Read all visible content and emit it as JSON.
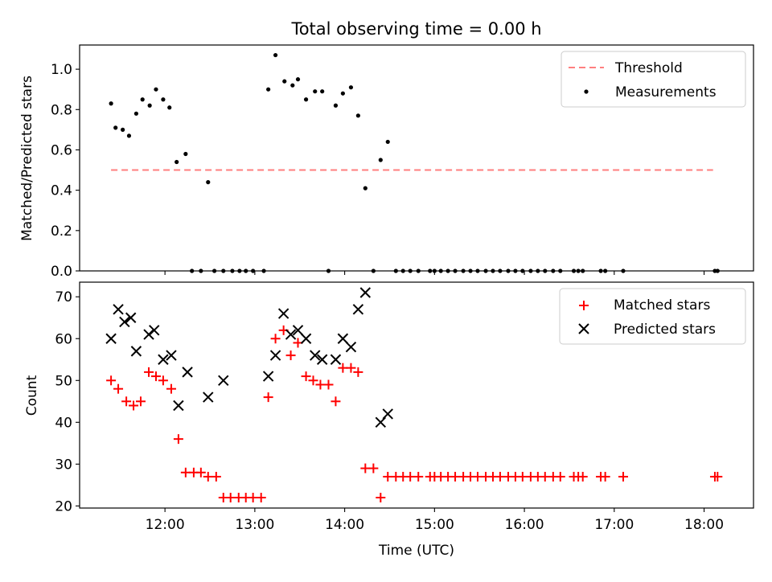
{
  "title": "Total observing time = 0.00 h",
  "xlabel": "Time (UTC)",
  "x_ticks": [
    "12:00",
    "13:00",
    "14:00",
    "15:00",
    "16:00",
    "17:00",
    "18:00"
  ],
  "top": {
    "ylabel": "Matched/Predicted stars",
    "y_ticks": [
      "0.0",
      "0.2",
      "0.4",
      "0.6",
      "0.8",
      "1.0"
    ],
    "legend": {
      "threshold": "Threshold",
      "measurements": "Measurements"
    }
  },
  "bottom": {
    "ylabel": "Count",
    "y_ticks": [
      "20",
      "30",
      "40",
      "50",
      "60",
      "70"
    ],
    "legend": {
      "matched": "Matched stars",
      "predicted": "Predicted stars"
    }
  },
  "colors": {
    "threshold": "#ff7f7f",
    "measurements": "#000000",
    "matched": "#ff0000",
    "predicted": "#000000"
  },
  "chart_data": [
    {
      "type": "scatter",
      "panel": "top",
      "xlabel": "",
      "ylabel": "Matched/Predicted stars",
      "x_unit": "hours UTC",
      "xlim": [
        11.05,
        18.55
      ],
      "ylim": [
        0.0,
        1.12
      ],
      "grid": false,
      "legend": "top-right",
      "threshold": {
        "name": "Threshold",
        "y": 0.5,
        "x": [
          11.4,
          18.1
        ],
        "style": "dashed"
      },
      "series": [
        {
          "name": "Measurements",
          "x": [
            11.4,
            11.45,
            11.53,
            11.6,
            11.68,
            11.75,
            11.83,
            11.9,
            11.98,
            12.05,
            12.13,
            12.23,
            12.48,
            12.65,
            12.3,
            12.4,
            12.55,
            12.75,
            12.83,
            12.9,
            12.98,
            13.1,
            13.15,
            13.23,
            13.33,
            13.42,
            13.48,
            13.57,
            13.67,
            13.75,
            13.82,
            13.9,
            13.98,
            14.07,
            14.15,
            14.23,
            14.32,
            14.4,
            14.48,
            14.57,
            14.65,
            14.73,
            14.82,
            14.95,
            15.0,
            15.07,
            15.15,
            15.23,
            15.32,
            15.4,
            15.48,
            15.57,
            15.65,
            15.73,
            15.82,
            15.9,
            15.98,
            16.07,
            16.15,
            16.23,
            16.32,
            16.4,
            16.55,
            16.6,
            16.65,
            16.85,
            16.9,
            17.1,
            18.12,
            18.15
          ],
          "y": [
            0.83,
            0.71,
            0.7,
            0.67,
            0.78,
            0.85,
            0.82,
            0.9,
            0.85,
            0.81,
            0.54,
            0.58,
            0.44,
            0.0,
            0.0,
            0.0,
            0.0,
            0.0,
            0.0,
            0.0,
            0.0,
            0.0,
            0.9,
            1.07,
            0.94,
            0.92,
            0.95,
            0.85,
            0.89,
            0.89,
            0.0,
            0.82,
            0.88,
            0.91,
            0.77,
            0.41,
            0.0,
            0.55,
            0.64,
            0.0,
            0.0,
            0.0,
            0.0,
            0.0,
            0.0,
            0.0,
            0.0,
            0.0,
            0.0,
            0.0,
            0.0,
            0.0,
            0.0,
            0.0,
            0.0,
            0.0,
            0.0,
            0.0,
            0.0,
            0.0,
            0.0,
            0.0,
            0.0,
            0.0,
            0.0,
            0.0,
            0.0,
            0.0,
            0.0,
            0.0
          ]
        }
      ]
    },
    {
      "type": "scatter",
      "panel": "bottom",
      "xlabel": "Time (UTC)",
      "ylabel": "Count",
      "x_unit": "hours UTC",
      "xlim": [
        11.05,
        18.55
      ],
      "ylim": [
        19.5,
        73.5
      ],
      "grid": false,
      "legend": "top-right",
      "series": [
        {
          "name": "Matched stars",
          "marker": "+",
          "x": [
            11.4,
            11.48,
            11.57,
            11.65,
            11.73,
            11.82,
            11.9,
            11.98,
            12.07,
            12.15,
            12.23,
            12.32,
            12.4,
            12.48,
            12.57,
            12.65,
            12.73,
            12.82,
            12.9,
            12.98,
            13.07,
            13.15,
            13.23,
            13.32,
            13.4,
            13.48,
            13.57,
            13.65,
            13.73,
            13.82,
            13.9,
            13.98,
            14.07,
            14.15,
            14.23,
            14.32,
            14.4,
            14.48,
            14.57,
            14.65,
            14.73,
            14.82,
            14.95,
            15.0,
            15.07,
            15.15,
            15.23,
            15.32,
            15.4,
            15.48,
            15.57,
            15.65,
            15.73,
            15.82,
            15.9,
            15.98,
            16.07,
            16.15,
            16.23,
            16.32,
            16.4,
            16.55,
            16.6,
            16.65,
            16.85,
            16.9,
            17.1,
            18.12,
            18.15
          ],
          "y": [
            50,
            48,
            45,
            44,
            45,
            52,
            51,
            50,
            48,
            36,
            28,
            28,
            28,
            27,
            27,
            22,
            22,
            22,
            22,
            22,
            22,
            46,
            60,
            62,
            56,
            59,
            51,
            50,
            49,
            49,
            45,
            53,
            53,
            52,
            29,
            29,
            22,
            27,
            27,
            27,
            27,
            27,
            27,
            27,
            27,
            27,
            27,
            27,
            27,
            27,
            27,
            27,
            27,
            27,
            27,
            27,
            27,
            27,
            27,
            27,
            27,
            27,
            27,
            27,
            27,
            27,
            27,
            27,
            27
          ]
        },
        {
          "name": "Predicted stars",
          "marker": "x",
          "x": [
            11.4,
            11.48,
            11.55,
            11.62,
            11.68,
            11.82,
            11.88,
            11.98,
            12.07,
            12.15,
            12.25,
            12.48,
            12.65,
            13.15,
            13.23,
            13.32,
            13.4,
            13.48,
            13.57,
            13.67,
            13.75,
            13.9,
            13.98,
            14.07,
            14.15,
            14.23,
            14.4,
            14.48
          ],
          "y": [
            60,
            67,
            64,
            65,
            57,
            61,
            62,
            55,
            56,
            44,
            52,
            46,
            50,
            51,
            56,
            66,
            61,
            62,
            60,
            56,
            55,
            55,
            60,
            58,
            67,
            71,
            40,
            42
          ]
        }
      ]
    }
  ]
}
